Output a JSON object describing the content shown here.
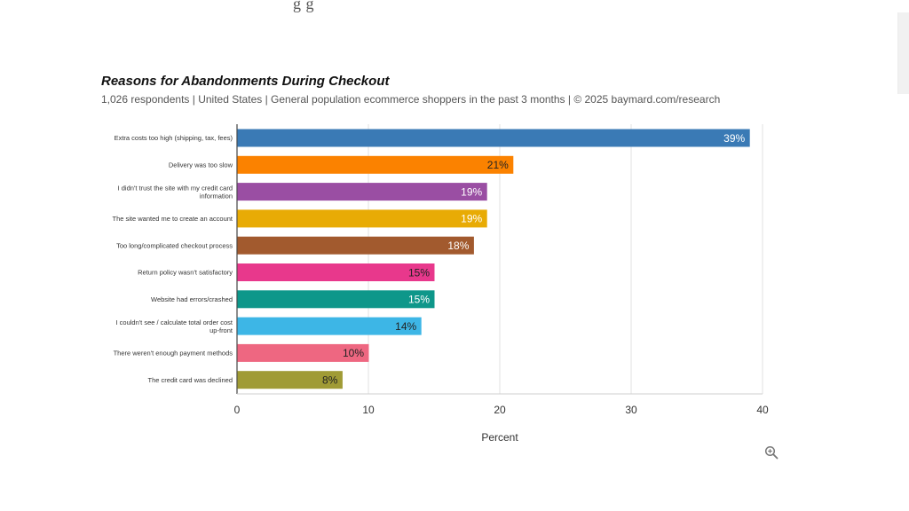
{
  "page": {
    "top_fragment": "g         g"
  },
  "icons": {
    "zoom": "zoom-in-icon"
  },
  "chart_data": {
    "type": "bar",
    "orientation": "horizontal",
    "title": "Reasons for Abandonments During Checkout",
    "subtitle": "1,026 respondents  |  United States  |  General population ecommerce shoppers in the past 3 months | © 2025 baymard.com/research",
    "xlabel": "Percent",
    "ylabel": "",
    "xlim": [
      0,
      40
    ],
    "xticks": [
      0,
      10,
      20,
      30,
      40
    ],
    "grid": true,
    "legend": "none",
    "categories": [
      [
        "Extra costs too high (shipping, tax, fees)"
      ],
      [
        "Delivery was too slow"
      ],
      [
        "I didn't trust the site with my credit card",
        "information"
      ],
      [
        "The site wanted me to create an account"
      ],
      [
        "Too long/complicated checkout process"
      ],
      [
        "Return policy wasn't satisfactory"
      ],
      [
        "Website had errors/crashed"
      ],
      [
        "I couldn't see / calculate total order cost",
        "up-front"
      ],
      [
        "There weren't enough payment methods"
      ],
      [
        "The credit card was declined"
      ]
    ],
    "values": [
      39,
      21,
      19,
      19,
      18,
      15,
      15,
      14,
      10,
      8
    ],
    "data_labels": [
      "39%",
      "21%",
      "19%",
      "19%",
      "18%",
      "15%",
      "15%",
      "14%",
      "10%",
      "8%"
    ],
    "colors": [
      "#3a7ab5",
      "#fb8200",
      "#9a4ea3",
      "#e8ab05",
      "#a25a2e",
      "#e8388c",
      "#0e978a",
      "#3db6e6",
      "#ee6781",
      "#a09b35"
    ],
    "label_colors": [
      "#ffffff",
      "#222222",
      "#ffffff",
      "#ffffff",
      "#ffffff",
      "#222222",
      "#ffffff",
      "#222222",
      "#222222",
      "#222222"
    ]
  }
}
